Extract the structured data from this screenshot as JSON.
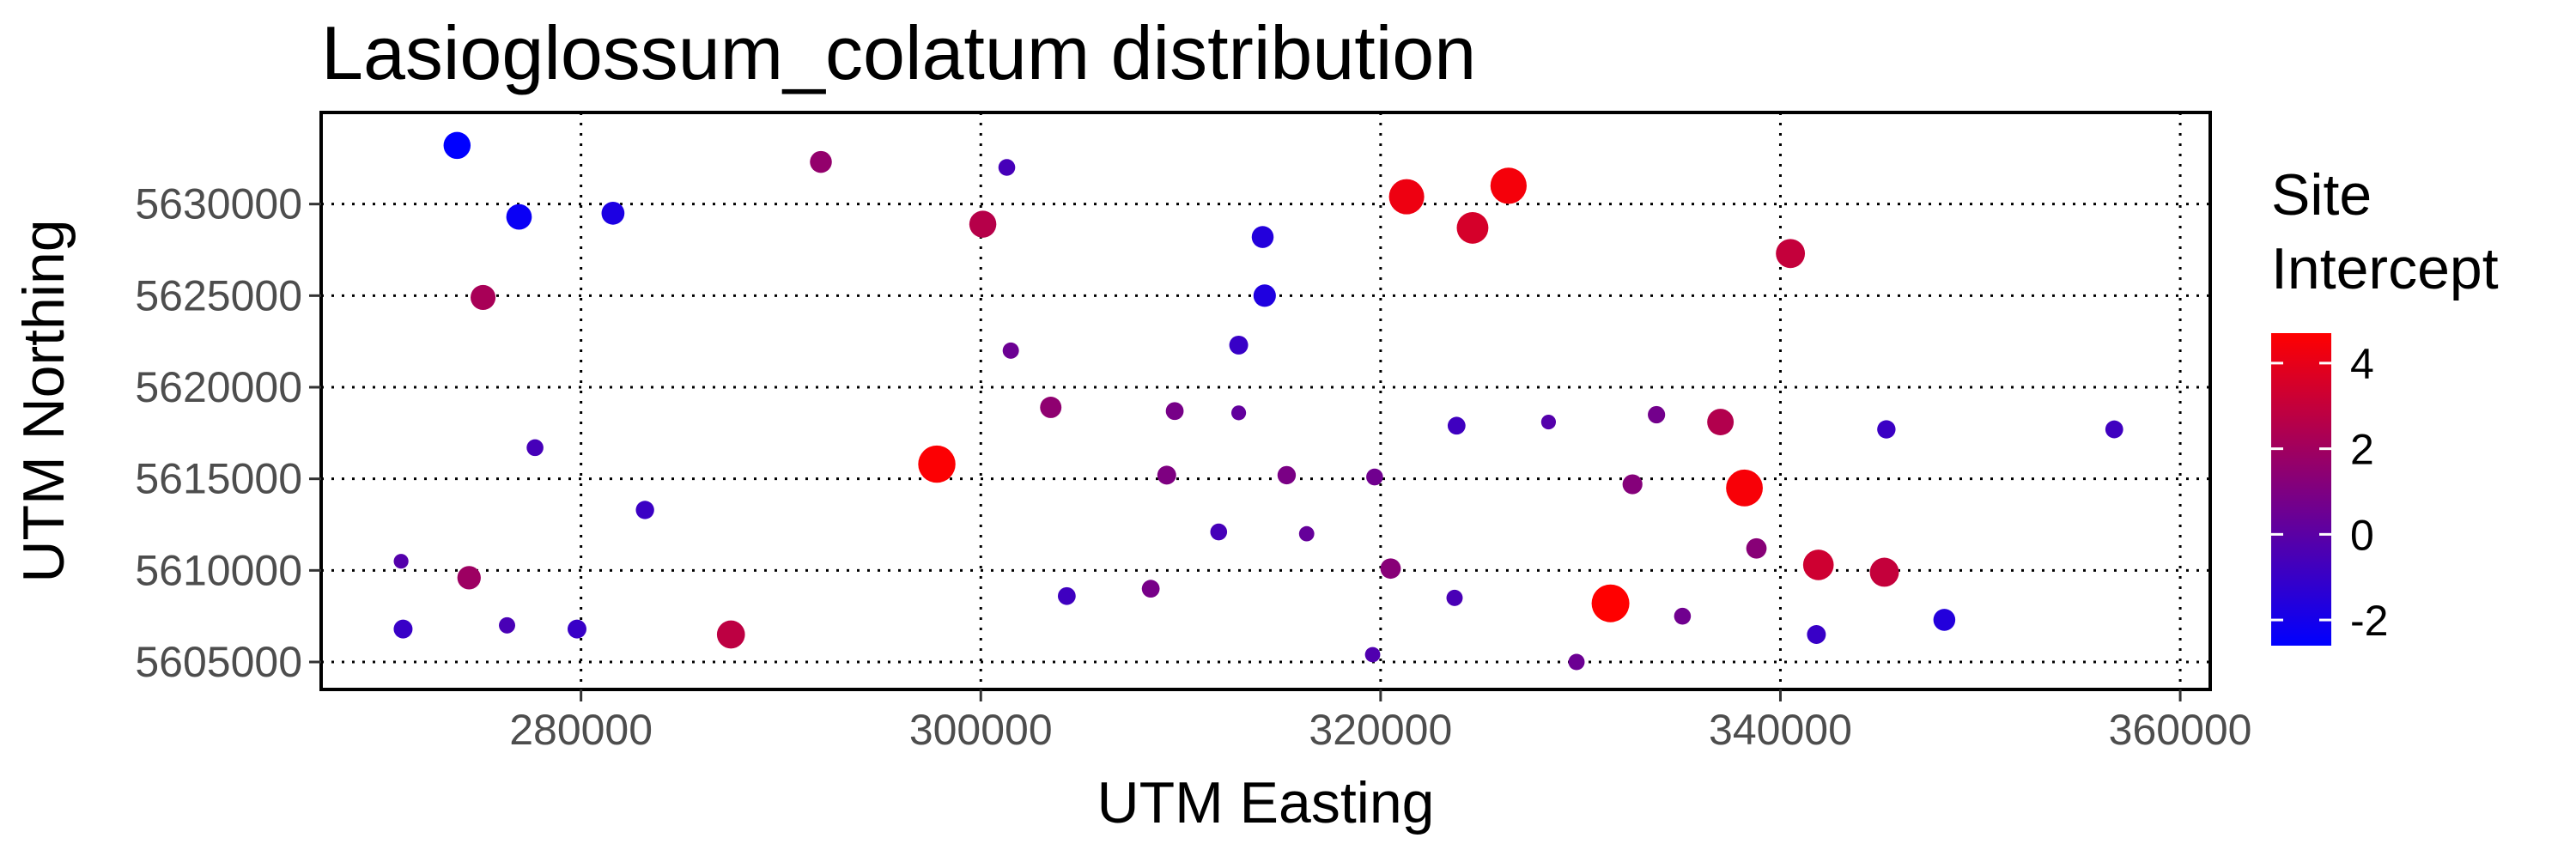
{
  "chart_data": {
    "type": "scatter",
    "title": "Lasioglossum_colatum distribution",
    "xlabel": "UTM Easting",
    "ylabel": "UTM Northing",
    "xlim": [
      267000,
      361500
    ],
    "ylim": [
      5603500,
      5635000
    ],
    "x_ticks": [
      280000,
      300000,
      320000,
      340000,
      360000
    ],
    "y_ticks": [
      5605000,
      5610000,
      5615000,
      5620000,
      5625000,
      5630000
    ],
    "x_tick_labels": [
      "280000",
      "300000",
      "320000",
      "340000",
      "360000"
    ],
    "y_tick_labels": [
      "5605000",
      "5610000",
      "5615000",
      "5620000",
      "5625000",
      "5630000"
    ],
    "grid": true,
    "grid_style": "dotted",
    "legend": {
      "title_lines": [
        "Site",
        "Intercept"
      ],
      "placement": "right",
      "range": [
        -2.6,
        4.7
      ],
      "ticks": [
        -2,
        0,
        2,
        4
      ],
      "tick_labels": [
        "-2",
        "0",
        "2",
        "4"
      ],
      "colors": {
        "low": "#0000ff",
        "high": "#ff0000"
      }
    },
    "points": [
      {
        "x": 273800,
        "y": 5633200,
        "value": -2.6
      },
      {
        "x": 276900,
        "y": 5629300,
        "value": -2.3
      },
      {
        "x": 281600,
        "y": 5629500,
        "value": -1.8
      },
      {
        "x": 275100,
        "y": 5624900,
        "value": 2.2
      },
      {
        "x": 292000,
        "y": 5632300,
        "value": 1.6
      },
      {
        "x": 301300,
        "y": 5632000,
        "value": -0.6
      },
      {
        "x": 300100,
        "y": 5628900,
        "value": 2.6
      },
      {
        "x": 314100,
        "y": 5628200,
        "value": -1.6
      },
      {
        "x": 321300,
        "y": 5630400,
        "value": 4.2
      },
      {
        "x": 326400,
        "y": 5631000,
        "value": 4.4
      },
      {
        "x": 324600,
        "y": 5628700,
        "value": 3.5
      },
      {
        "x": 340500,
        "y": 5627300,
        "value": 3.0
      },
      {
        "x": 314200,
        "y": 5625000,
        "value": -1.7
      },
      {
        "x": 301500,
        "y": 5622000,
        "value": 0.5
      },
      {
        "x": 312900,
        "y": 5622300,
        "value": -1.0
      },
      {
        "x": 303500,
        "y": 5618900,
        "value": 1.5
      },
      {
        "x": 309700,
        "y": 5618700,
        "value": 0.8
      },
      {
        "x": 312900,
        "y": 5618600,
        "value": 0.2
      },
      {
        "x": 277700,
        "y": 5616700,
        "value": -0.6
      },
      {
        "x": 297800,
        "y": 5615800,
        "value": 4.6
      },
      {
        "x": 309300,
        "y": 5615200,
        "value": 1.0
      },
      {
        "x": 315300,
        "y": 5615200,
        "value": 0.9
      },
      {
        "x": 319700,
        "y": 5615100,
        "value": 0.6
      },
      {
        "x": 323800,
        "y": 5617900,
        "value": -0.8
      },
      {
        "x": 328400,
        "y": 5618100,
        "value": -0.2
      },
      {
        "x": 333800,
        "y": 5618500,
        "value": 0.7
      },
      {
        "x": 337000,
        "y": 5618100,
        "value": 2.5
      },
      {
        "x": 345300,
        "y": 5617700,
        "value": -0.9
      },
      {
        "x": 356700,
        "y": 5617700,
        "value": -0.8
      },
      {
        "x": 283200,
        "y": 5613300,
        "value": -0.9
      },
      {
        "x": 332600,
        "y": 5614700,
        "value": 1.2
      },
      {
        "x": 338200,
        "y": 5614500,
        "value": 4.5
      },
      {
        "x": 311900,
        "y": 5612100,
        "value": -0.6
      },
      {
        "x": 316300,
        "y": 5612000,
        "value": 0.3
      },
      {
        "x": 271000,
        "y": 5610500,
        "value": -0.2
      },
      {
        "x": 274400,
        "y": 5609600,
        "value": 1.9
      },
      {
        "x": 320500,
        "y": 5610100,
        "value": 1.3
      },
      {
        "x": 338800,
        "y": 5611200,
        "value": 1.3
      },
      {
        "x": 341900,
        "y": 5610300,
        "value": 3.3
      },
      {
        "x": 345200,
        "y": 5609900,
        "value": 3.0
      },
      {
        "x": 271100,
        "y": 5606800,
        "value": -1.0
      },
      {
        "x": 276300,
        "y": 5607000,
        "value": -0.5
      },
      {
        "x": 279800,
        "y": 5606800,
        "value": -1.0
      },
      {
        "x": 287500,
        "y": 5606500,
        "value": 2.8
      },
      {
        "x": 304300,
        "y": 5608600,
        "value": -0.8
      },
      {
        "x": 308500,
        "y": 5609000,
        "value": 0.8
      },
      {
        "x": 323700,
        "y": 5608500,
        "value": -0.5
      },
      {
        "x": 331500,
        "y": 5608200,
        "value": 4.7
      },
      {
        "x": 335100,
        "y": 5607500,
        "value": 0.6
      },
      {
        "x": 341800,
        "y": 5606500,
        "value": -1.0
      },
      {
        "x": 348200,
        "y": 5607300,
        "value": -1.6
      },
      {
        "x": 319600,
        "y": 5605400,
        "value": -0.3
      },
      {
        "x": 329800,
        "y": 5605000,
        "value": 0.5
      }
    ]
  }
}
